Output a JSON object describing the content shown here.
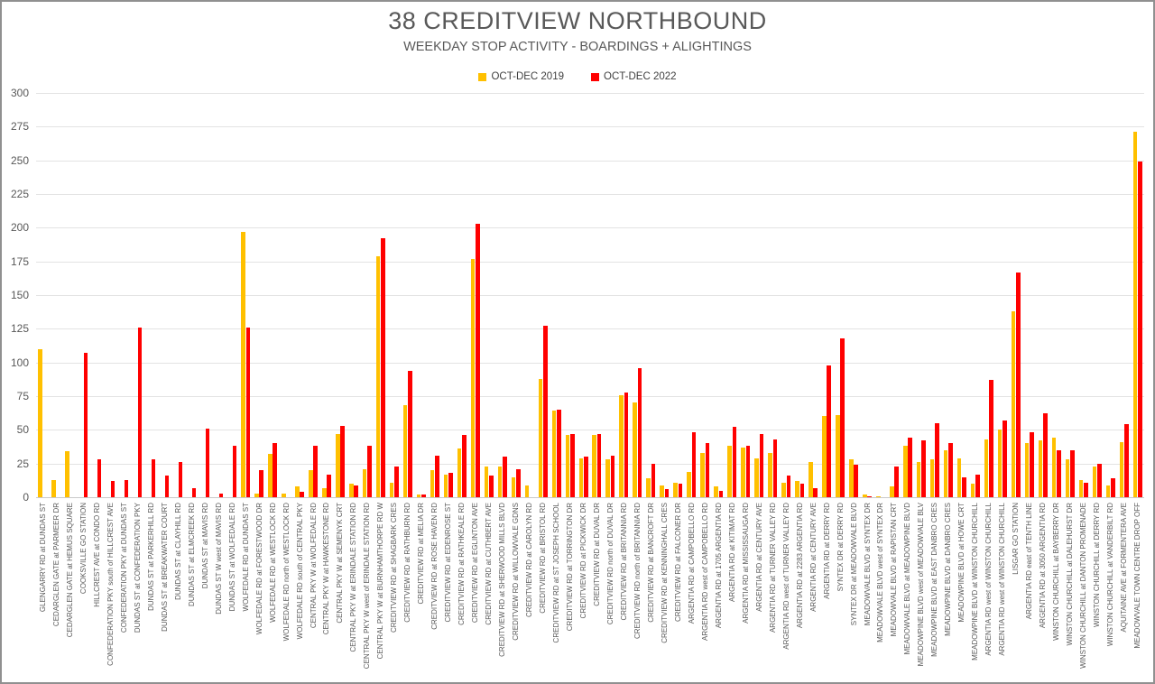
{
  "chart": {
    "title": "38 CREDITVIEW NORTHBOUND",
    "subtitle": "WEEKDAY STOP ACTIVITY - BOARDINGS + ALIGHTINGS",
    "legend": [
      {
        "label": "OCT-DEC 2019",
        "color": "#FFC000"
      },
      {
        "label": "OCT-DEC 2022",
        "color": "#FF0000"
      }
    ]
  },
  "chart_data": {
    "type": "bar",
    "title": "38 CREDITVIEW NORTHBOUND",
    "subtitle": "WEEKDAY STOP ACTIVITY - BOARDINGS + ALIGHTINGS",
    "xlabel": "",
    "ylabel": "",
    "ylim": [
      0,
      300
    ],
    "ytick_step": 25,
    "grid": true,
    "legend_position": "top",
    "categories": [
      "GLENGARRY RD at DUNDAS ST",
      "CEDARGLEN GATE at PARMEER DR",
      "CEDARGLEN GATE at HEMUS SQUARE",
      "COOKSVILLE GO STATION",
      "HILLCREST AVE at CONDO RD",
      "CONFEDERATION PKY south of HILLCREST AVE",
      "CONFEDERATION PKY at DUNDAS ST",
      "DUNDAS ST at CONFEDERATION PKY",
      "DUNDAS ST at PARKERHILL RD",
      "DUNDAS ST at BREAKWATER COURT",
      "DUNDAS ST at CLAYHILL RD",
      "DUNDAS ST at ELMCREEK RD",
      "DUNDAS ST at MAVIS RD",
      "DUNDAS ST W west of MAVIS RD",
      "DUNDAS ST at WOLFEDALE RD",
      "WOLFEDALE RD at DUNDAS ST",
      "WOLFEDALE RD at FORESTWOOD DR",
      "WOLFEDALE RD at WESTLOCK RD",
      "WOLFEDALE RD north of WESTLOCK RD",
      "WOLFEDALE RD south of CENTRAL PKY",
      "CENTRAL PKY W at WOLFEDALE RD",
      "CENTRAL PKY W at HAWKESTONE RD",
      "CENTRAL PKY W at SEMENYK CRT",
      "CENTRAL PKY W at ERINDALE STATION RD",
      "CENTRAL PKY W west of ERINDALE STATION RD",
      "CENTRAL PKY W at BURNHAMTHORPE RD W",
      "CREDITVIEW RD at SHAGBARK CRES",
      "CREDITVIEW RD at RATHBURN RD",
      "CREDITVIEW RD at MELIA DR",
      "CREDITVIEW RD at ROSE HAVEN RD",
      "CREDITVIEW RD at EDENROSE ST",
      "CREDITVIEW RD at RATHKEALE RD",
      "CREDITVIEW RD at EGLINTON AVE",
      "CREDITVIEW RD at CUTHBERT AVE",
      "CREDITVIEW RD at SHERWOOD MILLS BLVD",
      "CREDITVIEW RD at WILLOWVALE GDNS",
      "CREDITVIEW RD at CAROLYN RD",
      "CREDITVIEW RD at BRISTOL RD",
      "CREDITVIEW RD at ST JOSEPH SCHOOL",
      "CREDITVIEW RD at TORRINGTON DR",
      "CREDITVIEW RD at PICKWICK DR",
      "CREDITVIEW RD at DUVAL DR",
      "CREDITVIEW RD north of DUVAL DR",
      "CREDITVIEW RD at BRITANNIA RD",
      "CREDITVIEW RD north of BRITANNIA RD",
      "CREDITVIEW RD at BANCROFT DR",
      "CREDITVIEW RD at KENNINGHALL CRES",
      "CREDITVIEW RD at FALCONER DR",
      "ARGENTIA RD at CAMPOBELLO RD",
      "ARGENTIA RD west of CAMPOBELLO RD",
      "ARGENTIA RD at 1705 ARGENTIA RD",
      "ARGENTIA RD at KITIMAT RD",
      "ARGENTIA RD at MISSISSAUGA RD",
      "ARGENTIA RD at CENTURY AVE",
      "ARGENTIA RD at TURNER VALLEY RD",
      "ARGENTIA RD west of TURNER VALLEY RD",
      "ARGENTIA RD at 2283 ARGENTIA RD",
      "ARGENTIA RD at CENTURY AVE",
      "ARGENTIA RD at DERRY RD",
      "SYNTEX DR at DERRY RD",
      "SYNTEX DR at MEADOWVALE BLVD",
      "MEADOWVALE BLVD at SYNTEX DR",
      "MEADOWVALE BLVD west of SYNTEX DR",
      "MEADOWVALE BLVD at RAPISTAN CRT",
      "MEADOWVALE BLVD at MEADOWPINE BLVD",
      "MEADOWPINE BLVD west of MEADOWVALE BLV",
      "MEADOWPINE BLVD at EAST DANBRO CRES",
      "MEADOWPINE BLVD at DANBRO CRES",
      "MEADOWPINE BLVD at HOWE CRT",
      "MEADOWPINE BLVD at WINSTON CHURCHILL",
      "ARGENTIA RD west of WINSTON CHURCHILL",
      "ARGENTIA RD west of WINSTON CHURCHILL",
      "LISGAR GO STATION",
      "ARGENTIA RD east of TENTH LINE",
      "ARGENTIA RD at 3050 ARGENTIA RD",
      "WINSTON CHURCHILL at BAYBERRY DR",
      "WINSTON CHURCHILL at DALEHURST DR",
      "WINSTON CHURCHILL at DANTON PROMENADE",
      "WINSTON CHURCHILL at DERRY RD",
      "WINSTON CHURCHILL at VANDERBILT RD",
      "AQUITAINE AVE at FORMENTERA AVE",
      "MEADOWVALE TOWN CENTRE DROP OFF"
    ],
    "series": [
      {
        "name": "OCT-DEC 2019",
        "color": "#FFC000",
        "values": [
          110,
          13,
          34,
          0,
          0,
          0,
          0,
          0,
          0,
          0,
          0,
          0,
          0,
          0,
          0,
          197,
          3,
          32,
          3,
          8,
          20,
          7,
          47,
          10,
          21,
          179,
          11,
          68,
          2,
          20,
          17,
          36,
          177,
          23,
          23,
          15,
          9,
          88,
          64,
          46,
          29,
          46,
          28,
          76,
          70,
          14,
          9,
          11,
          19,
          33,
          8,
          38,
          37,
          29,
          33,
          11,
          12,
          26,
          60,
          61,
          28,
          2,
          1,
          8,
          38,
          26,
          28,
          35,
          29,
          10,
          43,
          50,
          138,
          40,
          42,
          44,
          28,
          13,
          23,
          9,
          41,
          271
        ]
      },
      {
        "name": "OCT-DEC 2022",
        "color": "#FF0000",
        "values": [
          0,
          0,
          0,
          107,
          28,
          12,
          13,
          126,
          28,
          16,
          26,
          7,
          51,
          3,
          38,
          126,
          20,
          40,
          0,
          4,
          38,
          17,
          53,
          9,
          38,
          192,
          23,
          94,
          2,
          31,
          18,
          46,
          203,
          16,
          30,
          21,
          0,
          127,
          65,
          47,
          30,
          47,
          31,
          78,
          96,
          25,
          6,
          10,
          48,
          40,
          5,
          52,
          38,
          47,
          43,
          16,
          10,
          7,
          98,
          118,
          24,
          1,
          0,
          23,
          44,
          42,
          55,
          40,
          15,
          17,
          87,
          57,
          167,
          48,
          62,
          35,
          35,
          11,
          25,
          14,
          54,
          249
        ]
      }
    ]
  }
}
